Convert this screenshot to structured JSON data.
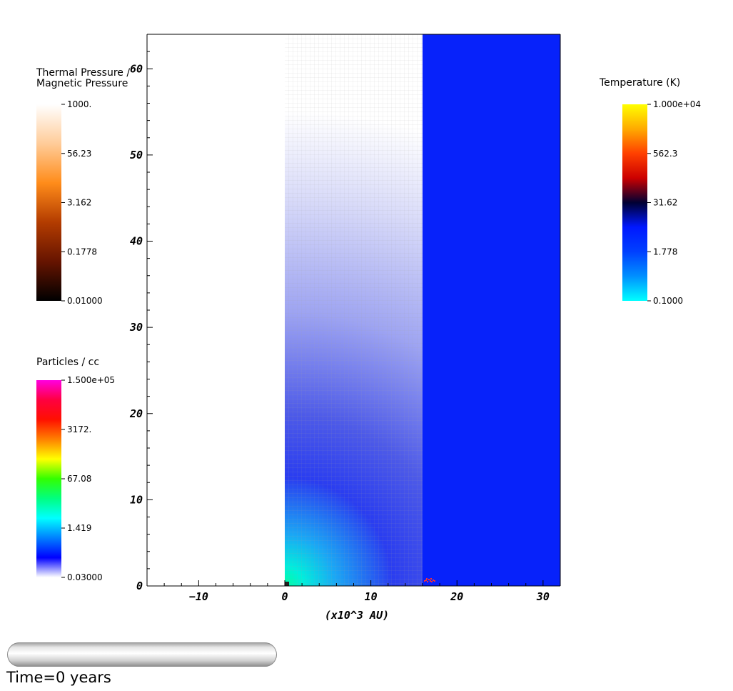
{
  "chart_data": {
    "type": "heatmap",
    "xlabel": "(x10^3 AU)",
    "ylabel": "",
    "xlim": [
      -16,
      32
    ],
    "ylim": [
      0,
      64
    ],
    "x_ticks": [
      -10,
      0,
      10,
      20,
      30
    ],
    "y_ticks": [
      0,
      10,
      20,
      30,
      40,
      50,
      60
    ],
    "panels": [
      {
        "field": "Thermal Pressure / Magnetic Pressure",
        "x_range": [
          -16,
          0
        ],
        "value": "background white"
      },
      {
        "field": "Particles / cc",
        "x_range": [
          0,
          16
        ],
        "structure": "radial density falloff from origin, with mesh grid overlay",
        "peak_near_origin": "cyan-green (~1.4-67)",
        "far_value": "pale lavender (~0.03)"
      },
      {
        "field": "Temperature (K)",
        "x_range": [
          16,
          32
        ],
        "value": "uniform ~10 K (blue)"
      }
    ],
    "colorbars": [
      {
        "title_lines": [
          "Thermal Pressure /",
          "Magnetic Pressure"
        ],
        "labels": [
          "1000.",
          "56.23",
          "3.162",
          "0.1778",
          "0.01000"
        ],
        "scale": "log"
      },
      {
        "title_lines": [
          "Particles / cc"
        ],
        "labels": [
          "1.500e+05",
          "3172.",
          "67.08",
          "1.419",
          "0.03000"
        ],
        "scale": "log"
      },
      {
        "title_lines": [
          "Temperature (K)"
        ],
        "labels": [
          "1.000e+04",
          "562.3",
          "31.62",
          "1.778",
          "0.1000"
        ],
        "scale": "log"
      }
    ]
  },
  "colorbar_pressure": {
    "title1": "Thermal Pressure /",
    "title2": "Magnetic Pressure",
    "labels": [
      "1000.",
      "56.23",
      "3.162",
      "0.1778",
      "0.01000"
    ],
    "colors": [
      "#ffffff",
      "#ffcc99",
      "#ff8c1a",
      "#b33c00",
      "#661400",
      "#000000"
    ]
  },
  "colorbar_density": {
    "title": "Particles / cc",
    "labels": [
      "1.500e+05",
      "3172.",
      "67.08",
      "1.419",
      "0.03000"
    ],
    "colors": [
      "#ff00e0",
      "#ff0040",
      "#ff1000",
      "#ff8000",
      "#ffff00",
      "#33ff00",
      "#00ff80",
      "#00ffff",
      "#0080ff",
      "#0000ff",
      "#ffffff"
    ]
  },
  "colorbar_temperature": {
    "title": "Temperature (K)",
    "labels": [
      "1.000e+04",
      "562.3",
      "31.62",
      "1.778",
      "0.1000"
    ],
    "colors": [
      "#ffff00",
      "#ffaa00",
      "#ff4000",
      "#cc0000",
      "#000033",
      "#0018ff",
      "#0040ff",
      "#0090ff",
      "#00ffff"
    ]
  },
  "colors": {
    "temperature_region": "#0722fa",
    "density_near": "#00e6d0",
    "density_mid": "#2a3df0",
    "density_far": "#ffffff",
    "grid_line": "#b0b0b0",
    "star_marker": "#202020",
    "hot_spot": "#ff3030"
  },
  "time_label": "Time=0 years"
}
